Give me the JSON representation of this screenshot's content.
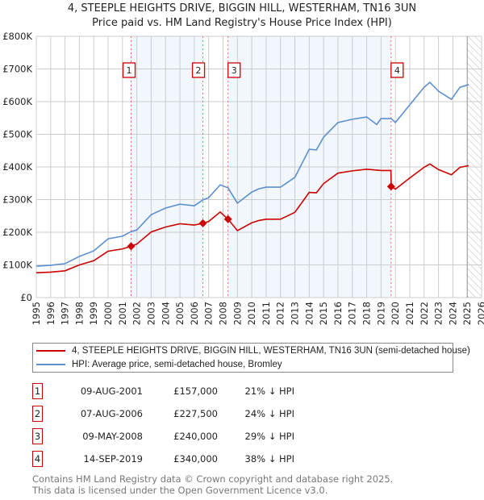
{
  "title": "4, STEEPLE HEIGHTS DRIVE, BIGGIN HILL, WESTERHAM, TN16 3UN",
  "subtitle": "Price paid vs. HM Land Registry's House Price Index (HPI)",
  "chart_data": {
    "type": "line",
    "title": "4, STEEPLE HEIGHTS DRIVE, BIGGIN HILL, WESTERHAM, TN16 3UN",
    "xlim": [
      1995,
      2026
    ],
    "ylim": [
      0,
      800000
    ],
    "x_ticks": [
      "1995",
      "1996",
      "1997",
      "1998",
      "1999",
      "2000",
      "2001",
      "2002",
      "2003",
      "2004",
      "2005",
      "2006",
      "2007",
      "2008",
      "2009",
      "2010",
      "2011",
      "2012",
      "2013",
      "2014",
      "2015",
      "2016",
      "2017",
      "2018",
      "2019",
      "2020",
      "2021",
      "2022",
      "2023",
      "2024",
      "2025",
      "2026"
    ],
    "y_ticks": [
      "£0",
      "£100K",
      "£200K",
      "£300K",
      "£400K",
      "£500K",
      "£600K",
      "£700K",
      "£800K"
    ],
    "grid": true,
    "series": [
      {
        "name": "4, STEEPLE HEIGHTS DRIVE, BIGGIN HILL, WESTERHAM, TN16 3UN (semi-detached house)",
        "color": "#cc0000",
        "x": [
          1995,
          1996,
          1997,
          1998,
          1999,
          2000,
          2001,
          2001.6,
          2002,
          2003,
          2004,
          2005,
          2006,
          2006.6,
          2007,
          2007.8,
          2008.35,
          2009,
          2010,
          2010.5,
          2011,
          2012,
          2013,
          2014,
          2014.5,
          2015,
          2016,
          2017,
          2018,
          2019,
          2019.69,
          2019.71,
          2020,
          2021,
          2022,
          2022.4,
          2023,
          2023.9,
          2024.5,
          2025.1
        ],
        "y": [
          76000,
          78000,
          82000,
          100000,
          113000,
          142000,
          149000,
          157000,
          164000,
          201000,
          216000,
          226000,
          222000,
          227500,
          233000,
          262000,
          240000,
          205000,
          229000,
          236000,
          240000,
          240000,
          261000,
          322000,
          321000,
          349000,
          381000,
          388000,
          393000,
          389000,
          389000,
          340000,
          332000,
          366000,
          399000,
          409000,
          392000,
          376000,
          399000,
          404000
        ]
      },
      {
        "name": "HPI: Average price, semi-detached house, Bromley",
        "color": "#5b8fd0",
        "x": [
          1995,
          1996,
          1997,
          1998,
          1999,
          2000,
          2001,
          2001.6,
          2002,
          2003,
          2004,
          2005,
          2006,
          2006.6,
          2007,
          2007.8,
          2008.35,
          2009,
          2010,
          2010.5,
          2011,
          2012,
          2013,
          2014,
          2014.5,
          2015,
          2016,
          2017,
          2018,
          2018.7,
          2019,
          2019.7,
          2020,
          2021,
          2022,
          2022.4,
          2023,
          2023.9,
          2024.5,
          2025.1
        ],
        "y": [
          96000,
          99000,
          104000,
          126000,
          143000,
          180000,
          188000,
          202000,
          207000,
          254000,
          274000,
          286000,
          281000,
          299000,
          306000,
          345000,
          336000,
          289000,
          323000,
          333000,
          338000,
          338000,
          368000,
          454000,
          452000,
          491000,
          536000,
          546000,
          553000,
          530000,
          548000,
          548000,
          536000,
          590000,
          644000,
          659000,
          632000,
          607000,
          644000,
          652000
        ]
      }
    ],
    "sales": [
      {
        "label": "1",
        "x": 2001.6,
        "y": 157000
      },
      {
        "label": "2",
        "x": 2006.6,
        "y": 227500
      },
      {
        "label": "3",
        "x": 2008.35,
        "y": 240000
      },
      {
        "label": "4",
        "x": 2019.7,
        "y": 340000
      }
    ],
    "shaded_ranges": [
      [
        2001.6,
        2006.6
      ],
      [
        2008.35,
        2019.7
      ]
    ],
    "hatched_from": 2025.0,
    "legend_placement": "below"
  },
  "legend": {
    "red": "4, STEEPLE HEIGHTS DRIVE, BIGGIN HILL, WESTERHAM, TN16 3UN (semi-detached house)",
    "blue": "HPI: Average price, semi-detached house, Bromley"
  },
  "table": [
    {
      "n": "1",
      "date": "09-AUG-2001",
      "price": "£157,000",
      "hpi": "21% ↓ HPI"
    },
    {
      "n": "2",
      "date": "07-AUG-2006",
      "price": "£227,500",
      "hpi": "24% ↓ HPI"
    },
    {
      "n": "3",
      "date": "09-MAY-2008",
      "price": "£240,000",
      "hpi": "29% ↓ HPI"
    },
    {
      "n": "4",
      "date": "14-SEP-2019",
      "price": "£340,000",
      "hpi": "38% ↓ HPI"
    }
  ],
  "footer": {
    "line1": "Contains HM Land Registry data © Crown copyright and database right 2025.",
    "line2": "This data is licensed under the Open Government Licence v3.0."
  }
}
